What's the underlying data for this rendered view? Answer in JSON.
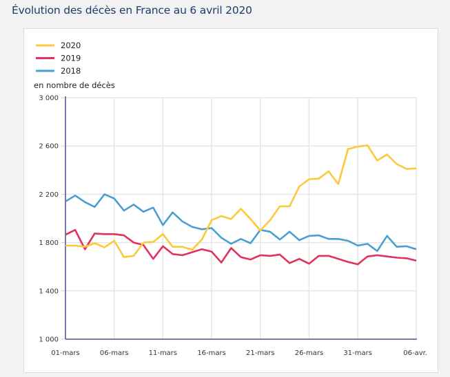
{
  "title": "Évolution des décès en France au 6 avril 2020",
  "chart_data": {
    "type": "line",
    "title": "Évolution des décès en France au 6 avril 2020",
    "ylabel": "en nombre de décès",
    "xlabel": "",
    "ylim": [
      1000,
      3000
    ],
    "yticks": [
      1000,
      1400,
      1800,
      2200,
      2600,
      3000
    ],
    "ytick_labels": [
      "1 000",
      "1 400",
      "1 800",
      "2 200",
      "2 600",
      "3 000"
    ],
    "xtick_labels": [
      "01-mars",
      "06-mars",
      "11-mars",
      "16-mars",
      "21-mars",
      "26-mars",
      "31-mars",
      "06-avr."
    ],
    "xtick_index": [
      0,
      5,
      10,
      15,
      20,
      25,
      30,
      36
    ],
    "n_points": 37,
    "grid": true,
    "legend_position": "top-left",
    "series": [
      {
        "name": "2020",
        "color": "#fcc93a",
        "values": [
          1775,
          1775,
          1765,
          1795,
          1760,
          1815,
          1680,
          1690,
          1800,
          1805,
          1870,
          1765,
          1765,
          1740,
          1825,
          1985,
          2020,
          1995,
          2080,
          1995,
          1900,
          1985,
          2100,
          2100,
          2265,
          2325,
          2330,
          2390,
          2285,
          2575,
          2595,
          2605,
          2480,
          2530,
          2450,
          2410,
          2415
        ]
      },
      {
        "name": "2019",
        "color": "#e3305c",
        "values": [
          1865,
          1905,
          1745,
          1875,
          1870,
          1870,
          1860,
          1800,
          1780,
          1665,
          1770,
          1705,
          1695,
          1720,
          1745,
          1725,
          1635,
          1755,
          1680,
          1660,
          1695,
          1690,
          1700,
          1630,
          1665,
          1625,
          1690,
          1690,
          1665,
          1640,
          1620,
          1685,
          1695,
          1685,
          1675,
          1670,
          1650
        ]
      },
      {
        "name": "2018",
        "color": "#4a9fd2",
        "values": [
          2140,
          2190,
          2135,
          2095,
          2200,
          2165,
          2065,
          2115,
          2055,
          2090,
          1945,
          2050,
          1975,
          1930,
          1910,
          1920,
          1840,
          1790,
          1830,
          1795,
          1905,
          1890,
          1825,
          1890,
          1820,
          1855,
          1860,
          1830,
          1830,
          1815,
          1775,
          1790,
          1730,
          1855,
          1765,
          1770,
          1745
        ]
      }
    ]
  }
}
